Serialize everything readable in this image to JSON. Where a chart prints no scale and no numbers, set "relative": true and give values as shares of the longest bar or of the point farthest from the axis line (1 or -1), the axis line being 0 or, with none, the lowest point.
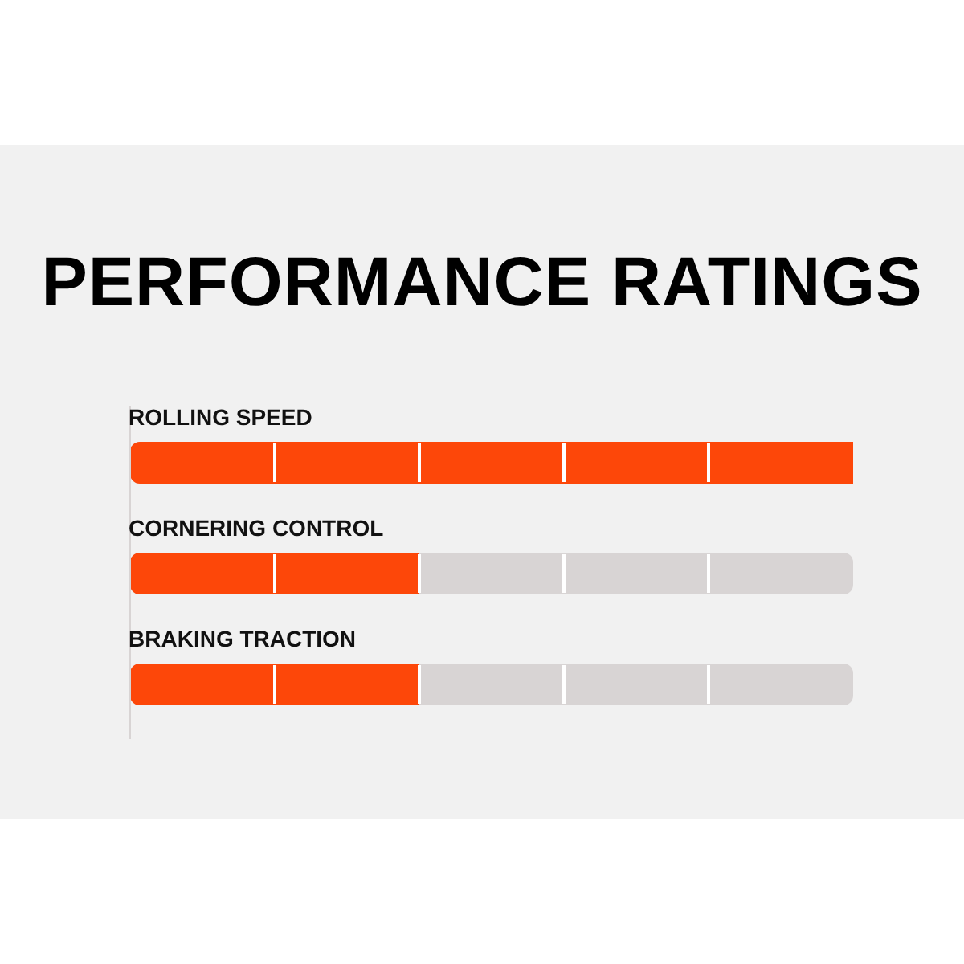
{
  "chart_data": {
    "type": "bar",
    "title": "PERFORMANCE RATINGS",
    "orientation": "horizontal",
    "relative": true,
    "legend": false,
    "categories": [
      "ROLLING SPEED",
      "CORNERING CONTROL",
      "BRAKING TRACTION"
    ],
    "series": [
      {
        "color": "#fd4709",
        "values": [
          1,
          0.4,
          0.4
        ]
      }
    ]
  }
}
